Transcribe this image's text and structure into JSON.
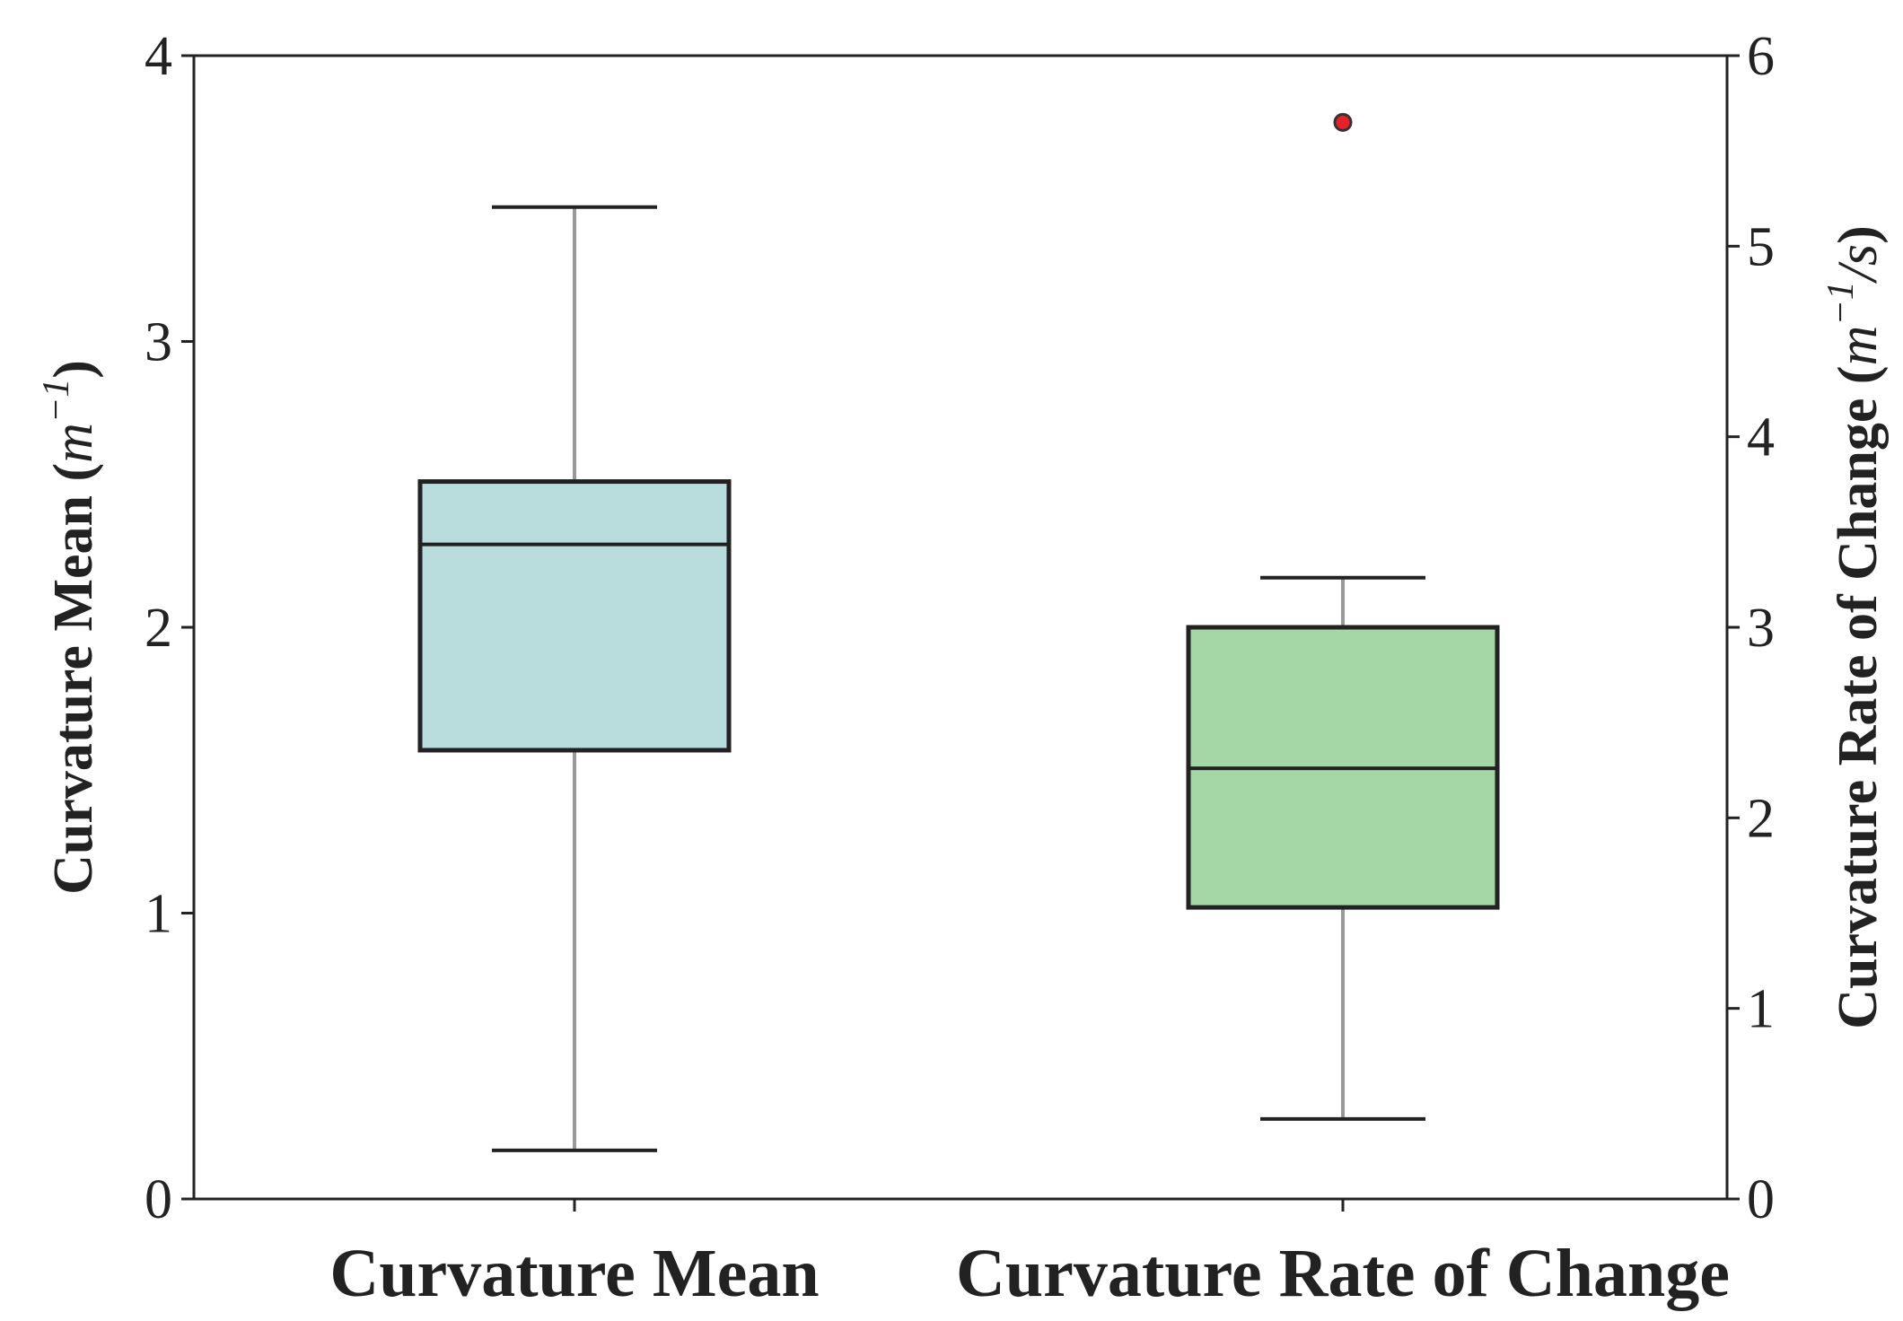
{
  "chart_data": {
    "type": "box",
    "categories": [
      "Curvature Mean",
      "Curvature Rate of Change"
    ],
    "left_axis": {
      "label_text": "Curvature Mean (",
      "label_unit": "m",
      "label_sup": "−1",
      "label_close": ")",
      "ylim": [
        0,
        4
      ],
      "ticks": [
        "0",
        "1",
        "2",
        "3",
        "4"
      ]
    },
    "right_axis": {
      "label_text": "Curvature Rate of Change (",
      "label_unit": "m",
      "label_sup": "−1",
      "label_slash": "/",
      "label_s": "s",
      "label_close": ")",
      "ylim": [
        0,
        6
      ],
      "ticks": [
        "0",
        "1",
        "2",
        "3",
        "4",
        "5",
        "6"
      ]
    },
    "boxes": [
      {
        "name": "Curvature Mean",
        "axis": "left",
        "whisker_low": 0.17,
        "q1": 1.57,
        "median": 2.29,
        "q3": 2.51,
        "whisker_high": 3.47,
        "outliers": [],
        "color": "#b9dcdc"
      },
      {
        "name": "Curvature Rate of Change",
        "axis": "right",
        "whisker_low": 0.42,
        "q1": 1.53,
        "median": 2.26,
        "q3": 3.0,
        "whisker_high": 3.26,
        "outliers": [
          5.65
        ],
        "color": "#a5d6a5"
      }
    ],
    "outlier_color": "#e8202a",
    "grid": false
  }
}
